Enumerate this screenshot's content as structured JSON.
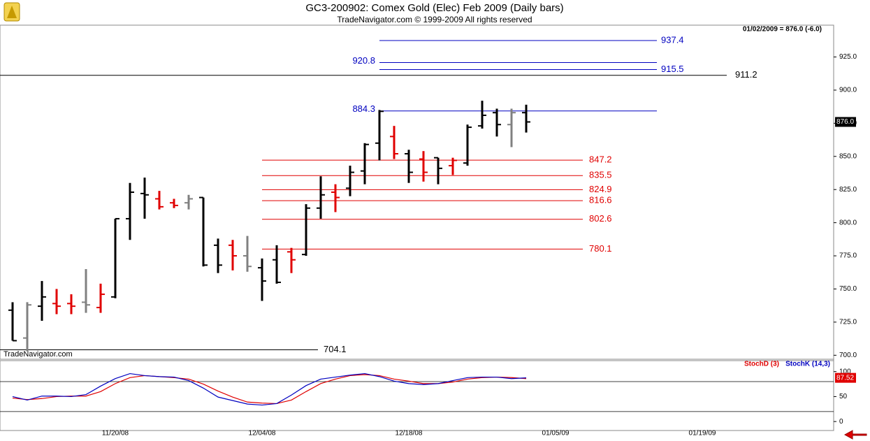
{
  "chart_data": [
    {
      "type": "ohlc",
      "title": "GC3-200902:  Comex Gold (Elec) Feb 2009  (Daily bars)",
      "subtitle": "TradeNavigator.com © 1999-2009 All rights reserved",
      "info": "01/02/2009 = 876.0 (-6.0)",
      "watermark": "TradeNavigator.com",
      "categories": [
        null,
        null,
        null,
        null,
        null,
        null,
        null,
        "11/20/08",
        null,
        null,
        null,
        null,
        null,
        null,
        null,
        null,
        null,
        "12/04/08",
        null,
        null,
        null,
        null,
        null,
        null,
        null,
        null,
        null,
        "12/18/08",
        null,
        null,
        null,
        null,
        null,
        null,
        null,
        null,
        null,
        "01/05/09",
        null,
        null,
        null,
        null,
        null,
        null,
        null,
        null,
        null,
        "01/19/09",
        null,
        null,
        null,
        null,
        null,
        null,
        null,
        null
      ],
      "open": [
        734,
        713,
        737,
        739,
        739,
        740,
        736,
        744,
        803,
        822,
        818,
        815,
        815,
        819,
        783,
        783,
        775,
        766,
        772,
        778,
        776,
        811,
        823,
        826,
        839,
        860,
        865,
        852,
        848,
        849,
        843,
        845,
        873,
        883,
        874,
        883,
        null,
        null,
        null,
        null,
        null,
        null,
        null,
        null,
        null,
        null,
        null,
        null,
        null,
        null,
        null,
        null,
        null,
        null,
        null,
        null
      ],
      "high": [
        740,
        740,
        756,
        750,
        746,
        765,
        754,
        803,
        830,
        834,
        824,
        818,
        821,
        819,
        788,
        787,
        790,
        773,
        783,
        781,
        814,
        835,
        829,
        843,
        860,
        885,
        873,
        855,
        854,
        849,
        849,
        874,
        892,
        886,
        886,
        889,
        null,
        null,
        null,
        null,
        null,
        null,
        null,
        null,
        null,
        null,
        null,
        null,
        null,
        null,
        null,
        null,
        null,
        null,
        null,
        null
      ],
      "low": [
        711,
        703,
        726,
        731,
        731,
        732,
        732,
        743,
        787,
        803,
        810,
        811,
        810,
        767,
        762,
        764,
        763,
        741,
        754,
        762,
        775,
        803,
        808,
        820,
        829,
        847,
        848,
        830,
        831,
        829,
        836,
        843,
        871,
        865,
        857,
        868,
        null,
        null,
        null,
        null,
        null,
        null,
        null,
        null,
        null,
        null,
        null,
        null,
        null,
        null,
        null,
        null,
        null,
        null,
        null,
        null
      ],
      "close": [
        711,
        738,
        744,
        737,
        737,
        738,
        746,
        803,
        823,
        821,
        812,
        813,
        818,
        768,
        768,
        775,
        767,
        756,
        755,
        772,
        811,
        821,
        819,
        838,
        859,
        884,
        852,
        838,
        838,
        841,
        847,
        872,
        881,
        874,
        883,
        876,
        null,
        null,
        null,
        null,
        null,
        null,
        null,
        null,
        null,
        null,
        null,
        null,
        null,
        null,
        null,
        null,
        null,
        null,
        null,
        null
      ],
      "colors": [
        "#000000",
        "#808080",
        "#000000",
        "#e00000",
        "#e00000",
        "#808080",
        "#e00000",
        "#000000",
        "#000000",
        "#000000",
        "#e00000",
        "#e00000",
        "#808080",
        "#000000",
        "#000000",
        "#e00000",
        "#808080",
        "#000000",
        "#000000",
        "#e00000",
        "#000000",
        "#000000",
        "#e00000",
        "#000000",
        "#000000",
        "#000000",
        "#e00000",
        "#000000",
        "#e00000",
        "#000000",
        "#e00000",
        "#000000",
        "#000000",
        "#000000",
        "#808080",
        "#000000",
        null,
        null,
        null,
        null,
        null,
        null,
        null,
        null,
        null,
        null,
        null,
        null,
        null,
        null,
        null,
        null,
        null,
        null,
        null,
        null
      ],
      "ylim": [
        697,
        949
      ],
      "yticks": [
        {
          "value": 700,
          "label": "700.0"
        },
        {
          "value": 725,
          "label": "725.0"
        },
        {
          "value": 750,
          "label": "750.0"
        },
        {
          "value": 775,
          "label": "775.0"
        },
        {
          "value": 800,
          "label": "800.0"
        },
        {
          "value": 825,
          "label": "825.0"
        },
        {
          "value": 850,
          "label": "850.0"
        },
        {
          "value": 875,
          "label": "875.0"
        },
        {
          "value": 900,
          "label": "900.0"
        },
        {
          "value": 925,
          "label": "925.0"
        }
      ],
      "last_price": {
        "value": 876,
        "label": "876.0"
      },
      "levels": [
        {
          "value": 937.4,
          "color": "#0000c0"
        },
        {
          "value": 920.8,
          "color": "#0000c0"
        },
        {
          "value": 915.5,
          "color": "#0000c0"
        },
        {
          "value": 911.2,
          "color": "#000000"
        },
        {
          "value": 884.3,
          "color": "#0000c0"
        },
        {
          "value": 847.2,
          "color": "#e00000"
        },
        {
          "value": 835.5,
          "color": "#e00000"
        },
        {
          "value": 824.9,
          "color": "#e00000"
        },
        {
          "value": 816.6,
          "color": "#e00000"
        },
        {
          "value": 802.6,
          "color": "#e00000"
        },
        {
          "value": 780.1,
          "color": "#e00000"
        },
        {
          "value": 704.1,
          "color": "#000000"
        }
      ]
    },
    {
      "type": "line",
      "series": [
        {
          "name": "StochD (3)",
          "color": "#e00000",
          "values": [
            47,
            44,
            46,
            50,
            51,
            51,
            60,
            76,
            88,
            92,
            90,
            88,
            85,
            75,
            61,
            49,
            39,
            37,
            36,
            43,
            60,
            76,
            85,
            92,
            94,
            92,
            85,
            81,
            76,
            76,
            79,
            85,
            88,
            89,
            88,
            86,
            null,
            null,
            null,
            null,
            null,
            null,
            null,
            null,
            null,
            null,
            null,
            null,
            null,
            null,
            null,
            null,
            null,
            null,
            null,
            null
          ]
        },
        {
          "name": "StochK (14,3)",
          "color": "#0000c0",
          "values": [
            50,
            43,
            51,
            51,
            50,
            54,
            71,
            86,
            96,
            92,
            90,
            89,
            82,
            67,
            49,
            42,
            35,
            33,
            36,
            53,
            72,
            85,
            89,
            93,
            96,
            90,
            81,
            76,
            74,
            76,
            82,
            88,
            89,
            89,
            86,
            87.52,
            null,
            null,
            null,
            null,
            null,
            null,
            null,
            null,
            null,
            null,
            null,
            null,
            null,
            null,
            null,
            null,
            null,
            null,
            null,
            null
          ]
        }
      ],
      "ylim": [
        -18,
        122
      ],
      "yticks": [
        0,
        50,
        100
      ],
      "levels": [
        80,
        20
      ],
      "last_value": 87.52
    }
  ]
}
